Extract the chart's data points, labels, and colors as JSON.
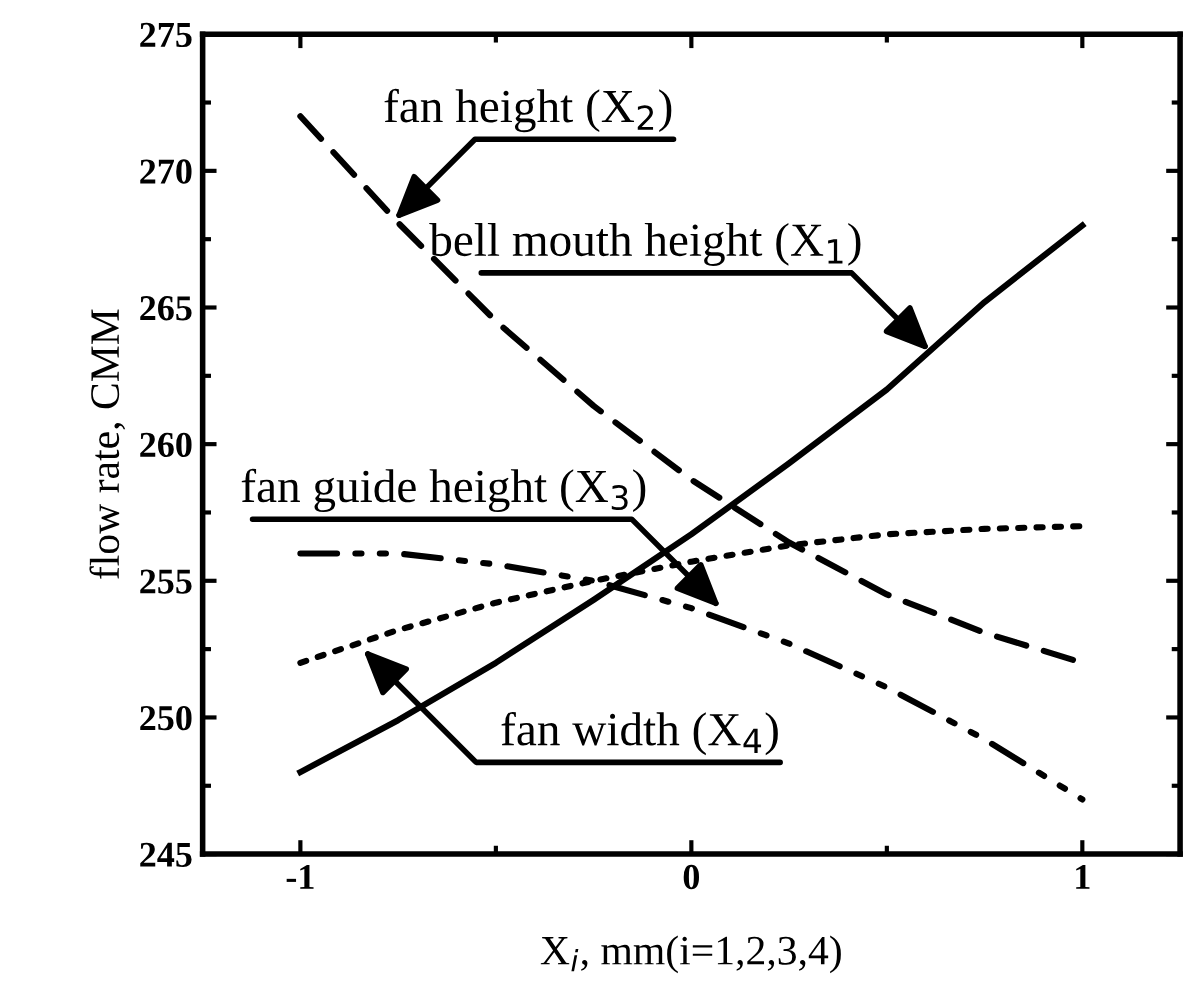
{
  "chart_data": {
    "type": "line",
    "xlabel": "X$_{i}$, mm(i=1,2,3,4)",
    "ylabel": "flow rate, CMM",
    "x": [
      -1,
      -0.75,
      -0.5,
      -0.25,
      0,
      0.25,
      0.5,
      0.75,
      1
    ],
    "series": [
      {
        "color": "#000000",
        "line_style": "solid",
        "values": [
          248,
          249.9,
          252.0,
          254.3,
          256.7,
          259.3,
          262.0,
          265.2,
          268
        ]
      },
      {
        "color": "#000000",
        "line_style": "dashed",
        "values": [
          272,
          268.1,
          264.5,
          261.4,
          258.7,
          256.4,
          254.5,
          253.1,
          252
        ]
      },
      {
        "color": "#000000",
        "line_style": "dotted",
        "values": [
          252,
          253.2,
          254.2,
          255.0,
          255.7,
          256.3,
          256.7,
          256.9,
          257
        ]
      },
      {
        "color": "#000000",
        "line_style": "dashdotdot",
        "values": [
          256,
          256.0,
          255.6,
          255.0,
          254.0,
          252.7,
          251.1,
          249.2,
          247
        ]
      }
    ],
    "annotations": [
      {
        "text": "fan height (X$_{2}$)",
        "x": -0.76,
        "y": 268.2
      },
      {
        "text": "bell mouth height (X$_{1}$)",
        "x": 0.61,
        "y": 263.4
      },
      {
        "text": "fan guide height (X$_{3}$)",
        "x": 0.075,
        "y": 254.0
      },
      {
        "text": "fan width (X$_{4}$)",
        "x": -0.84,
        "y": 252.5
      }
    ],
    "xlim": [
      -1.25,
      1.25
    ],
    "xticks": [
      -1,
      0,
      1
    ],
    "ylim": [
      245,
      275
    ],
    "yticks": [
      245,
      250,
      255,
      260,
      265,
      270,
      275
    ],
    "grid": false,
    "legend": false,
    "marker": "none"
  }
}
